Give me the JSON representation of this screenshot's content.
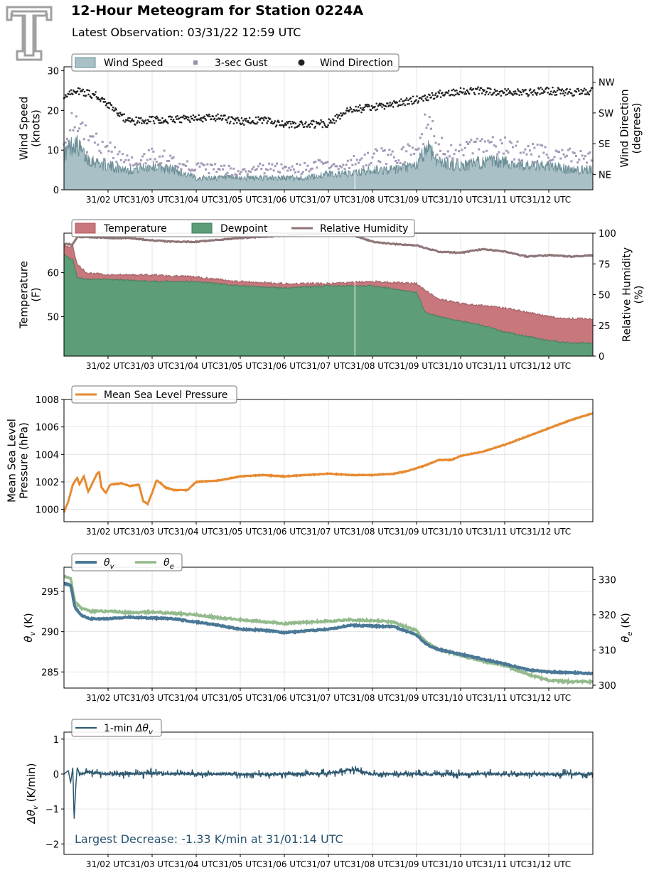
{
  "header": {
    "title": "12-Hour Meteogram for Station 0224A",
    "subtitle": "Latest Observation: 03/31/22 12:59 UTC"
  },
  "logo": {
    "icon": "texas-tech-double-t-logo",
    "color": "#a0a0a0"
  },
  "x_tick_labels": [
    "31/02 UTC",
    "31/03 UTC",
    "31/04 UTC",
    "31/05 UTC",
    "31/06 UTC",
    "31/07 UTC",
    "31/08 UTC",
    "31/09 UTC",
    "31/10 UTC",
    "31/11 UTC",
    "31/12 UTC"
  ],
  "chart_data": [
    {
      "type": "area",
      "panel": "wind",
      "x_range_hours": [
        1.0,
        13.0
      ],
      "ylabel": "Wind Speed\n(knots)",
      "ylim": [
        0,
        31
      ],
      "yticks": [
        "0",
        "10",
        "20",
        "30"
      ],
      "ylabel_right": "Wind Direction\n(degrees)",
      "ylim_right": [
        0,
        360
      ],
      "yticks_right": [
        "NE",
        "SE",
        "SW",
        "NW"
      ],
      "legend": {
        "placement": "top-left",
        "entries": [
          "Wind Speed",
          "3-sec Gust",
          "Wind Direction"
        ]
      },
      "colors": {
        "speed": "#a8c0c6",
        "speed_line": "#6e8f98",
        "gust": "#9a8fb0",
        "direction": "#222222"
      },
      "series": [
        {
          "name": "Wind Speed",
          "x": [
            1.0,
            1.25,
            1.5,
            2.0,
            2.5,
            3.0,
            3.5,
            4.0,
            4.5,
            5.0,
            5.5,
            6.0,
            6.5,
            7.0,
            7.5,
            8.0,
            8.5,
            9.0,
            9.25,
            9.5,
            10.0,
            10.5,
            11.0,
            11.5,
            12.0,
            12.5,
            13.0
          ],
          "values": [
            9,
            12,
            8,
            6,
            5,
            6,
            5,
            3,
            3,
            3,
            3,
            3,
            3,
            4,
            4,
            5,
            5,
            6,
            11,
            7,
            6,
            7,
            7,
            6,
            6,
            5,
            5
          ]
        },
        {
          "name": "3-sec Gust",
          "x": [
            1.0,
            1.25,
            1.5,
            2.0,
            2.5,
            3.0,
            3.5,
            4.0,
            4.5,
            5.0,
            5.5,
            6.0,
            6.5,
            7.0,
            7.5,
            8.0,
            8.5,
            9.0,
            9.25,
            9.5,
            10.0,
            10.5,
            11.0,
            11.5,
            12.0,
            12.5,
            13.0
          ],
          "values": [
            13,
            17,
            12,
            9,
            7,
            8,
            7,
            5,
            5,
            4,
            5,
            5,
            5,
            6,
            6,
            8,
            8,
            9,
            16,
            10,
            9,
            10,
            10,
            9,
            8,
            8,
            7
          ]
        },
        {
          "name": "Wind Direction",
          "x": [
            1.0,
            1.25,
            1.5,
            1.75,
            2.0,
            2.25,
            2.5,
            3.0,
            3.5,
            4.0,
            4.5,
            5.0,
            5.5,
            6.0,
            6.5,
            7.0,
            7.5,
            8.0,
            8.5,
            9.0,
            9.5,
            10.0,
            10.5,
            11.0,
            11.5,
            12.0,
            12.5,
            13.0
          ],
          "values": [
            270,
            290,
            285,
            275,
            250,
            220,
            200,
            205,
            205,
            210,
            210,
            200,
            205,
            190,
            190,
            195,
            235,
            240,
            250,
            265,
            280,
            290,
            290,
            285,
            285,
            290,
            285,
            290
          ]
        }
      ]
    },
    {
      "type": "area",
      "panel": "temperature",
      "ylabel": "Temperature\n(F)",
      "ylim": [
        41,
        69
      ],
      "yticks": [
        "50",
        "60"
      ],
      "ylabel_right": "Relative Humidity\n(%)",
      "ylim_right": [
        0,
        100
      ],
      "yticks_right": [
        "0",
        "25",
        "50",
        "75",
        "100"
      ],
      "legend": {
        "placement": "top-left",
        "entries": [
          "Temperature",
          "Dewpoint",
          "Relative Humidity"
        ]
      },
      "colors": {
        "temperature": "#c8777c",
        "dewpoint": "#5d9e78",
        "rh": "#8e7477"
      },
      "series": [
        {
          "name": "Temperature",
          "x": [
            1.0,
            1.2,
            1.3,
            1.5,
            2.0,
            3.0,
            4.0,
            5.0,
            6.0,
            7.0,
            8.0,
            9.0,
            9.2,
            9.5,
            10.0,
            10.5,
            11.0,
            11.5,
            12.0,
            12.5,
            13.0
          ],
          "values": [
            66,
            66,
            62,
            60,
            59.5,
            59.5,
            59,
            58,
            57.5,
            57.5,
            58,
            57.5,
            56,
            54,
            53,
            52.5,
            52,
            51,
            50,
            49.5,
            49.5
          ]
        },
        {
          "name": "Dewpoint",
          "x": [
            1.0,
            1.2,
            1.3,
            1.5,
            2.0,
            3.0,
            4.0,
            5.0,
            6.0,
            7.0,
            8.0,
            9.0,
            9.2,
            9.5,
            10.0,
            10.5,
            11.0,
            11.5,
            12.0,
            12.5,
            13.0
          ],
          "values": [
            64,
            63,
            59,
            58.5,
            58.5,
            58,
            58,
            57,
            56.5,
            57,
            57,
            55.5,
            51,
            50,
            49,
            48,
            46.5,
            45.5,
            44.5,
            44,
            44
          ]
        },
        {
          "name": "Relative Humidity",
          "x": [
            1.0,
            1.2,
            1.3,
            1.5,
            2.0,
            2.5,
            3.0,
            3.5,
            4.0,
            5.0,
            6.0,
            6.5,
            7.0,
            7.5,
            8.0,
            8.5,
            9.0,
            9.3,
            9.5,
            10.0,
            10.5,
            11.0,
            11.5,
            12.0,
            12.5,
            13.0
          ],
          "values": [
            91,
            91,
            97,
            97,
            96,
            96,
            94,
            93,
            93,
            96,
            98,
            99,
            99,
            99,
            93,
            91,
            90,
            87,
            85,
            84,
            87,
            85,
            81,
            82,
            81,
            82
          ]
        }
      ]
    },
    {
      "type": "line",
      "panel": "pressure",
      "ylabel": "Mean Sea Level\nPressure (hPa)",
      "ylim": [
        999.1,
        1008.0
      ],
      "yticks": [
        "1000",
        "1002",
        "1004",
        "1006",
        "1008"
      ],
      "legend": {
        "placement": "top-left",
        "entries": [
          "Mean Sea Level Pressure"
        ]
      },
      "colors": {
        "mslp": "#e68a30"
      },
      "series": [
        {
          "name": "Mean Sea Level Pressure",
          "x": [
            1.0,
            1.1,
            1.2,
            1.3,
            1.35,
            1.45,
            1.55,
            1.6,
            1.75,
            1.8,
            1.85,
            1.95,
            2.05,
            2.3,
            2.5,
            2.7,
            2.8,
            2.9,
            3.0,
            3.1,
            3.2,
            3.3,
            3.5,
            3.8,
            4.0,
            4.5,
            5.0,
            5.5,
            6.0,
            6.5,
            7.0,
            7.5,
            8.0,
            8.5,
            8.8,
            9.0,
            9.2,
            9.5,
            9.8,
            10.0,
            10.5,
            11.0,
            11.5,
            12.0,
            12.5,
            13.0
          ],
          "values": [
            999.8,
            1000.6,
            1001.8,
            1002.3,
            1001.8,
            1002.4,
            1001.3,
            1001.6,
            1002.6,
            1002.7,
            1001.6,
            1001.2,
            1001.8,
            1001.9,
            1001.7,
            1001.8,
            1000.6,
            1000.4,
            1001.2,
            1002.1,
            1001.9,
            1001.6,
            1001.4,
            1001.4,
            1002.0,
            1002.1,
            1002.4,
            1002.5,
            1002.4,
            1002.5,
            1002.6,
            1002.5,
            1002.5,
            1002.6,
            1002.8,
            1003.0,
            1003.2,
            1003.6,
            1003.6,
            1003.9,
            1004.2,
            1004.7,
            1005.3,
            1005.9,
            1006.5,
            1007.0
          ]
        }
      ]
    },
    {
      "type": "line",
      "panel": "theta",
      "ylabel": "θv (K)",
      "ylim": [
        283,
        298
      ],
      "yticks": [
        "285",
        "290",
        "295"
      ],
      "ylabel_right": "θe (K)",
      "ylim_right": [
        299.2,
        333.5
      ],
      "yticks_right": [
        "300",
        "310",
        "320",
        "330"
      ],
      "legend": {
        "placement": "top-left",
        "entries": [
          "θv",
          "θe"
        ]
      },
      "colors": {
        "theta_v": "#4a7896",
        "theta_e": "#93ba8c"
      },
      "series": [
        {
          "name": "θv",
          "axis": "left",
          "x": [
            1.0,
            1.15,
            1.25,
            1.4,
            1.6,
            2.0,
            2.5,
            3.0,
            3.5,
            4.0,
            4.5,
            5.0,
            5.5,
            6.0,
            6.5,
            7.0,
            7.5,
            8.0,
            8.5,
            9.0,
            9.15,
            9.3,
            9.5,
            10.0,
            10.5,
            11.0,
            11.5,
            12.0,
            12.5,
            13.0
          ],
          "values": [
            296.0,
            295.8,
            293.0,
            292.0,
            291.6,
            291.6,
            291.8,
            291.7,
            291.6,
            291.2,
            290.8,
            290.3,
            290.2,
            289.9,
            290.1,
            290.3,
            290.8,
            290.7,
            290.6,
            289.6,
            288.8,
            288.2,
            287.8,
            287.2,
            286.6,
            286.0,
            285.3,
            285.0,
            284.9,
            284.8
          ]
        },
        {
          "name": "θe",
          "axis": "right",
          "x": [
            1.0,
            1.15,
            1.25,
            1.4,
            1.6,
            2.0,
            2.5,
            3.0,
            3.5,
            4.0,
            4.5,
            5.0,
            5.5,
            6.0,
            6.5,
            7.0,
            7.5,
            8.0,
            8.5,
            9.0,
            9.15,
            9.3,
            9.5,
            10.0,
            10.5,
            11.0,
            11.5,
            12.0,
            12.5,
            13.0
          ],
          "values": [
            331.0,
            330.5,
            323.5,
            321.8,
            321.0,
            321.0,
            320.6,
            320.8,
            320.4,
            320.0,
            319.2,
            318.6,
            318.1,
            317.5,
            317.9,
            318.2,
            318.6,
            318.4,
            317.8,
            315.5,
            313.0,
            311.6,
            310.2,
            308.5,
            306.8,
            305.6,
            303.2,
            301.4,
            301.0,
            301.0
          ]
        }
      ]
    },
    {
      "type": "line",
      "panel": "delta",
      "ylabel": "Δθv (K/min)",
      "ylim": [
        -2.3,
        1.2
      ],
      "yticks": [
        "−2",
        "−1",
        "0",
        "1"
      ],
      "legend": {
        "placement": "top-left",
        "entries": [
          "1-min Δθv"
        ]
      },
      "colors": {
        "delta": "#2e5870"
      },
      "annotation": "Largest Decrease: -1.33 K/min at 31/01:14 UTC",
      "series": [
        {
          "name": "1-min Δθv",
          "x": [
            1.0,
            1.1,
            1.15,
            1.2,
            1.23,
            1.27,
            1.3,
            1.35,
            1.5,
            2.0,
            3.0,
            4.0,
            5.0,
            6.0,
            7.0,
            7.5,
            8.0,
            9.0,
            10.0,
            11.0,
            12.0,
            13.0
          ],
          "values": [
            0,
            0.1,
            -0.25,
            0.18,
            -1.33,
            -0.3,
            0.2,
            0,
            0.05,
            0,
            0.02,
            0,
            0,
            0,
            0.02,
            0.12,
            0,
            0,
            0,
            0,
            0,
            0
          ]
        }
      ]
    }
  ]
}
